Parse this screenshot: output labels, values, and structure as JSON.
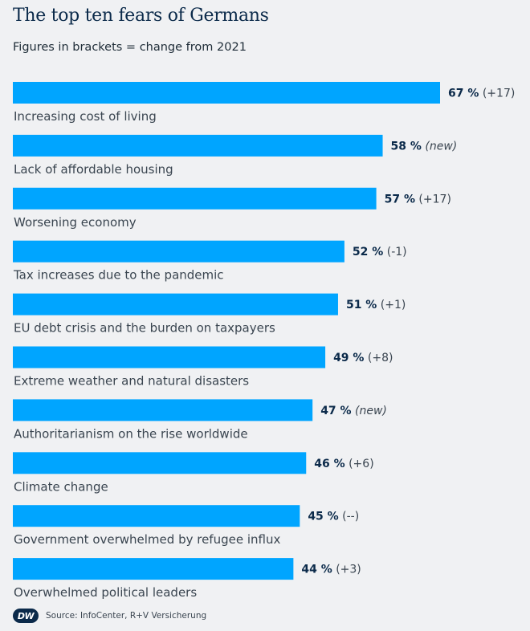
{
  "chart_data": {
    "type": "bar",
    "orientation": "horizontal",
    "title": "The top ten fears of Germans",
    "subtitle": "Figures in brackets = change from 2021",
    "unit": "%",
    "bar_color": "#00a5ff",
    "categories": [
      "Increasing cost of living",
      "Lack of affordable housing",
      "Worsening economy",
      "Tax increases due to the pandemic",
      "EU debt crisis and the burden on taxpayers",
      "Extreme weather and natural disasters",
      "Authoritarianism on the rise worldwide",
      "Climate change",
      "Government overwhelmed by refugee influx",
      "Overwhelmed political leaders"
    ],
    "values": [
      67,
      58,
      57,
      52,
      51,
      49,
      47,
      46,
      45,
      44
    ],
    "value_labels": [
      "67 %",
      "58 %",
      "57 %",
      "52 %",
      "51 %",
      "49 %",
      "47 %",
      "46 %",
      "45 %",
      "44 %"
    ],
    "change_labels": [
      "(+17)",
      "(new)",
      "(+17)",
      "(-1)",
      "(+1)",
      "(+8)",
      "(new)",
      "(+6)",
      "(--)",
      "(+3)"
    ],
    "change_italic": [
      false,
      true,
      false,
      false,
      false,
      false,
      true,
      false,
      false,
      false
    ]
  },
  "footer": {
    "logo_text": "DW",
    "source": "Source: InfoCenter, R+V Versicherung"
  }
}
